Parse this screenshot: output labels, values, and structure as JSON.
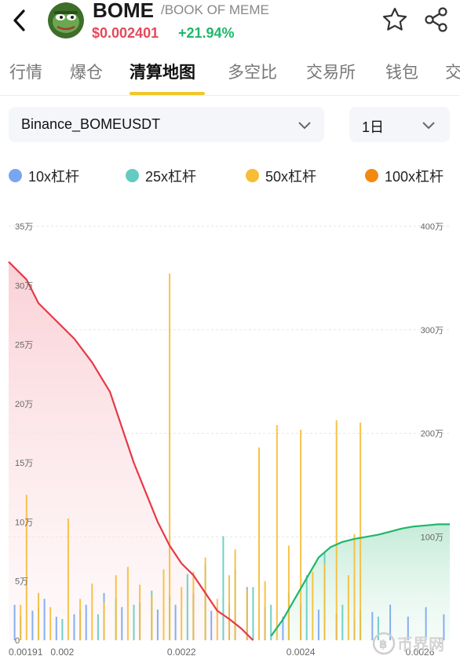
{
  "header": {
    "symbol": "BOME",
    "name": "/BOOK OF MEME",
    "price": "$0.002401",
    "change": "+21.94%"
  },
  "tabs": [
    {
      "label": "行情"
    },
    {
      "label": "爆仓"
    },
    {
      "label": "清算地图",
      "active": true
    },
    {
      "label": "多空比"
    },
    {
      "label": "交易所"
    },
    {
      "label": "钱包"
    },
    {
      "label": "交"
    }
  ],
  "selectors": {
    "pair": "Binance_BOMEUSDT",
    "period": "1日"
  },
  "legend": [
    {
      "label": "10x杠杆",
      "color": "#7aa5f0"
    },
    {
      "label": "25x杠杆",
      "color": "#63cbc3"
    },
    {
      "label": "50x杠杆",
      "color": "#f6bd35"
    },
    {
      "label": "100x杠杆",
      "color": "#f28a10"
    }
  ],
  "watermark": "币界网",
  "colors": {
    "red_curve": "#e63946",
    "green_curve": "#1fb76a",
    "grid": "#e6e6e6",
    "tab_underline": "#f2c72a"
  },
  "chart_data": {
    "type": "bar",
    "xlabel": "",
    "ylabel": "",
    "x_ticks": [
      "0.00191",
      "0.002",
      "0.0022",
      "0.0024",
      "0.0026"
    ],
    "x_range": [
      0.00191,
      0.00265
    ],
    "y_left_ticks": [
      "0",
      "5万",
      "10万",
      "15万",
      "20万",
      "25万",
      "30万",
      "35万"
    ],
    "y_left_range": [
      0,
      350000
    ],
    "y_right_ticks": [
      "0",
      "100万",
      "200万",
      "300万",
      "400万"
    ],
    "y_right_range": [
      0,
      4000000
    ],
    "grid": true,
    "bar_series": [
      {
        "name": "10x杠杆",
        "color": "#7aa5f0",
        "points": [
          [
            0.00192,
            30000
          ],
          [
            0.00195,
            25000
          ],
          [
            0.00197,
            35000
          ],
          [
            0.00199,
            20000
          ],
          [
            0.00202,
            22000
          ],
          [
            0.00204,
            30000
          ],
          [
            0.00207,
            40000
          ],
          [
            0.0021,
            28000
          ],
          [
            0.00213,
            32000
          ],
          [
            0.00216,
            26000
          ],
          [
            0.00219,
            30000
          ],
          [
            0.00222,
            40000
          ],
          [
            0.00225,
            25000
          ],
          [
            0.00228,
            30000
          ],
          [
            0.00231,
            45000
          ],
          [
            0.00234,
            28000
          ],
          [
            0.00237,
            20000
          ],
          [
            0.0024,
            30000
          ],
          [
            0.00243,
            26000
          ],
          [
            0.00246,
            22000
          ],
          [
            0.00249,
            18000
          ],
          [
            0.00252,
            24000
          ],
          [
            0.00255,
            30000
          ],
          [
            0.00258,
            20000
          ],
          [
            0.00261,
            28000
          ],
          [
            0.00264,
            22000
          ]
        ]
      },
      {
        "name": "25x杠杆",
        "color": "#63cbc3",
        "points": [
          [
            0.00193,
            20000
          ],
          [
            0.00196,
            28000
          ],
          [
            0.002,
            18000
          ],
          [
            0.00203,
            26000
          ],
          [
            0.00206,
            22000
          ],
          [
            0.00209,
            35000
          ],
          [
            0.00212,
            30000
          ],
          [
            0.00215,
            42000
          ],
          [
            0.00218,
            38000
          ],
          [
            0.00221,
            56000
          ],
          [
            0.00224,
            64000
          ],
          [
            0.00227,
            88000
          ],
          [
            0.00229,
            60000
          ],
          [
            0.00232,
            45000
          ],
          [
            0.00235,
            30000
          ],
          [
            0.00238,
            40000
          ],
          [
            0.00241,
            55000
          ],
          [
            0.00244,
            75000
          ],
          [
            0.00247,
            30000
          ],
          [
            0.0025,
            25000
          ],
          [
            0.00253,
            20000
          ]
        ]
      },
      {
        "name": "50x杠杆",
        "color": "#f6bd35",
        "points": [
          [
            0.00193,
            30000
          ],
          [
            0.00194,
            123000
          ],
          [
            0.00196,
            40000
          ],
          [
            0.00198,
            28000
          ],
          [
            0.00201,
            103000
          ],
          [
            0.00203,
            35000
          ],
          [
            0.00205,
            48000
          ],
          [
            0.00207,
            32000
          ],
          [
            0.00209,
            55000
          ],
          [
            0.00211,
            62000
          ],
          [
            0.00213,
            47000
          ],
          [
            0.00215,
            38000
          ],
          [
            0.00217,
            60000
          ],
          [
            0.00218,
            310000
          ],
          [
            0.0022,
            45000
          ],
          [
            0.00222,
            58000
          ],
          [
            0.00224,
            70000
          ],
          [
            0.00226,
            35000
          ],
          [
            0.00228,
            55000
          ],
          [
            0.00229,
            77000
          ],
          [
            0.00231,
            43000
          ],
          [
            0.00233,
            163000
          ],
          [
            0.00234,
            50000
          ],
          [
            0.00236,
            182000
          ],
          [
            0.00238,
            80000
          ],
          [
            0.0024,
            178000
          ],
          [
            0.00242,
            58000
          ],
          [
            0.00244,
            65000
          ],
          [
            0.00246,
            186000
          ],
          [
            0.00248,
            55000
          ],
          [
            0.00249,
            90000
          ],
          [
            0.0025,
            184000
          ]
        ]
      }
    ],
    "line_series": [
      {
        "name": "short_cumulative",
        "color": "#e63946",
        "axis": "left",
        "points": [
          [
            0.00191,
            320000
          ],
          [
            0.00194,
            305000
          ],
          [
            0.00196,
            285000
          ],
          [
            0.00199,
            270000
          ],
          [
            0.00202,
            255000
          ],
          [
            0.00205,
            235000
          ],
          [
            0.00208,
            210000
          ],
          [
            0.0021,
            180000
          ],
          [
            0.00212,
            150000
          ],
          [
            0.00214,
            125000
          ],
          [
            0.00216,
            100000
          ],
          [
            0.00218,
            80000
          ],
          [
            0.0022,
            65000
          ],
          [
            0.00222,
            55000
          ],
          [
            0.00224,
            40000
          ],
          [
            0.00226,
            25000
          ],
          [
            0.00228,
            18000
          ],
          [
            0.0023,
            10000
          ],
          [
            0.00232,
            0
          ]
        ]
      },
      {
        "name": "long_cumulative",
        "color": "#1fb76a",
        "axis": "right",
        "points": [
          [
            0.00235,
            40000
          ],
          [
            0.00237,
            200000
          ],
          [
            0.00239,
            400000
          ],
          [
            0.00241,
            600000
          ],
          [
            0.00243,
            800000
          ],
          [
            0.00245,
            900000
          ],
          [
            0.00247,
            950000
          ],
          [
            0.00249,
            980000
          ],
          [
            0.00251,
            1000000
          ],
          [
            0.00253,
            1020000
          ],
          [
            0.00255,
            1050000
          ],
          [
            0.00257,
            1080000
          ],
          [
            0.00259,
            1100000
          ],
          [
            0.00261,
            1110000
          ],
          [
            0.00263,
            1120000
          ],
          [
            0.00265,
            1120000
          ]
        ]
      }
    ]
  }
}
